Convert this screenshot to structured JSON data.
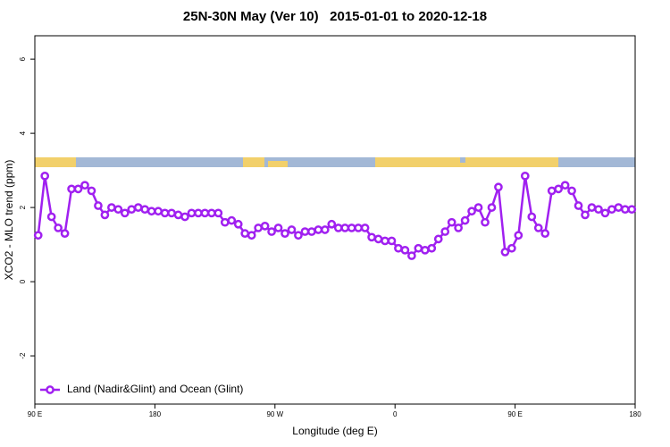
{
  "chart_data": {
    "type": "line",
    "title": "25N-30N May (Ver 10)   2015-01-01 to 2020-12-18",
    "xlabel": "Longitude (deg E)",
    "ylabel": "XCO2 - MLO trend (ppm)",
    "xlim": [
      90,
      540
    ],
    "xticks": [
      {
        "value": 90,
        "label": "90 E"
      },
      180,
      {
        "value": 270,
        "label": "90 W"
      },
      {
        "value": 360,
        "label": "0"
      },
      {
        "value": 450,
        "label": "90 E"
      },
      {
        "value": 540,
        "label": "180"
      }
    ],
    "ylim": [
      -3.3,
      6.63
    ],
    "yticks": [
      -2,
      0,
      2,
      4,
      6
    ],
    "legend": "bottom-left",
    "x": [
      92.5,
      97.5,
      102.5,
      107.5,
      112.5,
      117.5,
      122.5,
      127.5,
      132.5,
      137.5,
      142.5,
      147.5,
      152.5,
      157.5,
      162.5,
      167.5,
      172.5,
      177.5,
      182.5,
      187.5,
      192.5,
      197.5,
      202.5,
      207.5,
      212.5,
      217.5,
      222.5,
      227.5,
      232.5,
      237.5,
      242.5,
      247.5,
      252.5,
      257.5,
      262.5,
      267.5,
      272.5,
      277.5,
      282.5,
      287.5,
      292.5,
      297.5,
      302.5,
      307.5,
      312.5,
      317.5,
      322.5,
      327.5,
      332.5,
      337.5,
      342.5,
      347.5,
      352.5,
      357.5,
      362.5,
      367.5,
      372.5,
      377.5,
      382.5,
      387.5,
      392.5,
      397.5,
      402.5,
      407.5,
      412.5,
      417.5,
      422.5,
      427.5,
      432.5,
      437.5,
      442.5,
      447.5,
      452.5,
      457.5,
      462.5,
      467.5,
      472.5,
      477.5,
      482.5,
      487.5,
      492.5,
      497.5,
      502.5,
      507.5,
      512.5,
      517.5,
      522.5,
      527.5,
      532.5,
      537.5
    ],
    "series": [
      {
        "name": "Land (Nadir&Glint) and Ocean (Glint)",
        "color": "#a020f0",
        "values": [
          1.25,
          2.85,
          1.75,
          1.45,
          1.3,
          2.5,
          2.5,
          2.6,
          2.45,
          2.05,
          1.8,
          2.0,
          1.95,
          1.85,
          1.95,
          2.0,
          1.95,
          1.9,
          1.9,
          1.85,
          1.85,
          1.8,
          1.75,
          1.85,
          1.85,
          1.85,
          1.85,
          1.85,
          1.6,
          1.65,
          1.55,
          1.3,
          1.25,
          1.45,
          1.5,
          1.35,
          1.45,
          1.3,
          1.4,
          1.25,
          1.35,
          1.35,
          1.4,
          1.4,
          1.55,
          1.45,
          1.45,
          1.45,
          1.45,
          1.45,
          1.2,
          1.15,
          1.1,
          1.1,
          0.9,
          0.85,
          0.7,
          0.9,
          0.85,
          0.9,
          1.15,
          1.35,
          1.6,
          1.45,
          1.65,
          1.9,
          2.0,
          1.6,
          2.0,
          2.55,
          0.8,
          0.9,
          1.25,
          2.85,
          1.75,
          1.45,
          1.3,
          2.45,
          2.5,
          2.6,
          2.45,
          2.05,
          1.8,
          2.0,
          1.95,
          1.85,
          1.95,
          2.0,
          1.95,
          1.95
        ]
      }
    ]
  }
}
